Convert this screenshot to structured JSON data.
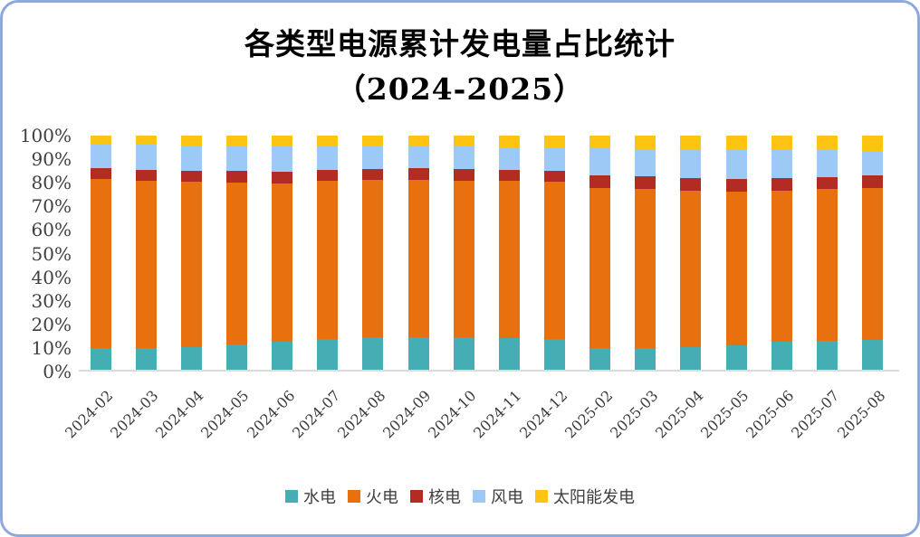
{
  "window": {
    "border_color": "#8EA9DB",
    "background_color": "#FFFFFF",
    "baseline_color": "#DBDBDB"
  },
  "title": {
    "line1": "各类型电源累计发电量占比统计",
    "line2": "（2024-2025）"
  },
  "axis": {
    "y_ticks": [
      "100%",
      "90%",
      "80%",
      "70%",
      "60%",
      "50%",
      "40%",
      "30%",
      "20%",
      "10%",
      "0%"
    ],
    "label_color": "#3F3F3F"
  },
  "chart_data": {
    "type": "bar",
    "stacked": true,
    "percent_stacked": true,
    "unit": "%",
    "title": "各类型电源累计发电量占比统计（2024-2025）",
    "xlabel": "",
    "ylabel": "",
    "ylim": [
      0,
      100
    ],
    "grid": false,
    "legend_position": "bottom",
    "categories": [
      "2024-02",
      "2024-03",
      "2024-04",
      "2024-05",
      "2024-06",
      "2024-07",
      "2024-08",
      "2024-09",
      "2024-10",
      "2024-11",
      "2024-12",
      "2025-02",
      "2025-03",
      "2025-04",
      "2025-05",
      "2025-06",
      "2025-07",
      "2025-08"
    ],
    "series": [
      {
        "name": "水电",
        "color": "#45AEB4",
        "values": [
          9.1,
          9.1,
          9.7,
          10.7,
          11.8,
          13.3,
          13.9,
          13.9,
          13.8,
          13.5,
          13.0,
          9.2,
          9.2,
          9.7,
          10.3,
          11.8,
          12.5,
          12.6
        ]
      },
      {
        "name": "火电",
        "color": "#E8700F",
        "values": [
          72.5,
          71.6,
          70.6,
          69.4,
          67.9,
          67.4,
          67.1,
          67.3,
          66.9,
          67.2,
          67.3,
          68.3,
          67.9,
          66.8,
          65.9,
          64.7,
          64.6,
          64.9
        ]
      },
      {
        "name": "核电",
        "color": "#B22C23",
        "values": [
          4.7,
          4.7,
          4.5,
          4.7,
          4.7,
          4.7,
          4.7,
          4.9,
          5.0,
          4.7,
          4.5,
          5.4,
          5.4,
          5.4,
          5.4,
          5.4,
          5.1,
          5.4
        ]
      },
      {
        "name": "风电",
        "color": "#9DC9F7",
        "values": [
          10.4,
          11.2,
          10.9,
          10.5,
          10.9,
          10.0,
          9.7,
          9.3,
          9.7,
          9.6,
          10.2,
          11.9,
          11.9,
          12.2,
          12.5,
          11.8,
          11.5,
          10.6
        ]
      },
      {
        "name": "太阳能发电",
        "color": "#FFC411",
        "values": [
          3.3,
          3.4,
          4.3,
          4.7,
          4.7,
          4.6,
          4.6,
          4.6,
          4.6,
          5.0,
          5.0,
          5.2,
          5.6,
          5.9,
          5.9,
          6.3,
          6.3,
          6.5
        ]
      }
    ]
  }
}
